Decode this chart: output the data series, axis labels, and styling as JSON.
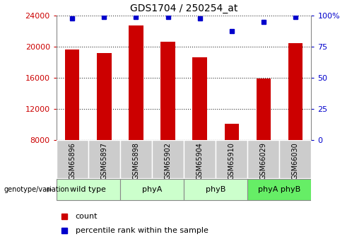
{
  "title": "GDS1704 / 250254_at",
  "samples": [
    "GSM65896",
    "GSM65897",
    "GSM65898",
    "GSM65902",
    "GSM65904",
    "GSM65910",
    "GSM66029",
    "GSM66030"
  ],
  "counts": [
    19700,
    19200,
    22800,
    20700,
    18700,
    10100,
    15900,
    20500
  ],
  "percentile_ranks": [
    98,
    99,
    99,
    99,
    98,
    88,
    95,
    99
  ],
  "groups": [
    {
      "label": "wild type",
      "color": "#ccffcc",
      "start": 0,
      "end": 2
    },
    {
      "label": "phyA",
      "color": "#ccffcc",
      "start": 2,
      "end": 4
    },
    {
      "label": "phyB",
      "color": "#ccffcc",
      "start": 4,
      "end": 6
    },
    {
      "label": "phyA phyB",
      "color": "#66ee66",
      "start": 6,
      "end": 8
    }
  ],
  "y_min": 8000,
  "y_max": 24000,
  "y_ticks": [
    8000,
    12000,
    16000,
    20000,
    24000
  ],
  "y2_ticks": [
    0,
    25,
    50,
    75,
    100
  ],
  "bar_color": "#cc0000",
  "dot_color": "#0000cc",
  "bar_width": 0.45,
  "grid_color": "#000000",
  "label_color_left": "#cc0000",
  "label_color_right": "#0000cc",
  "legend_count_color": "#cc0000",
  "legend_pct_color": "#0000cc",
  "sample_bg_color": "#cccccc",
  "genotext": "genotype/variation"
}
